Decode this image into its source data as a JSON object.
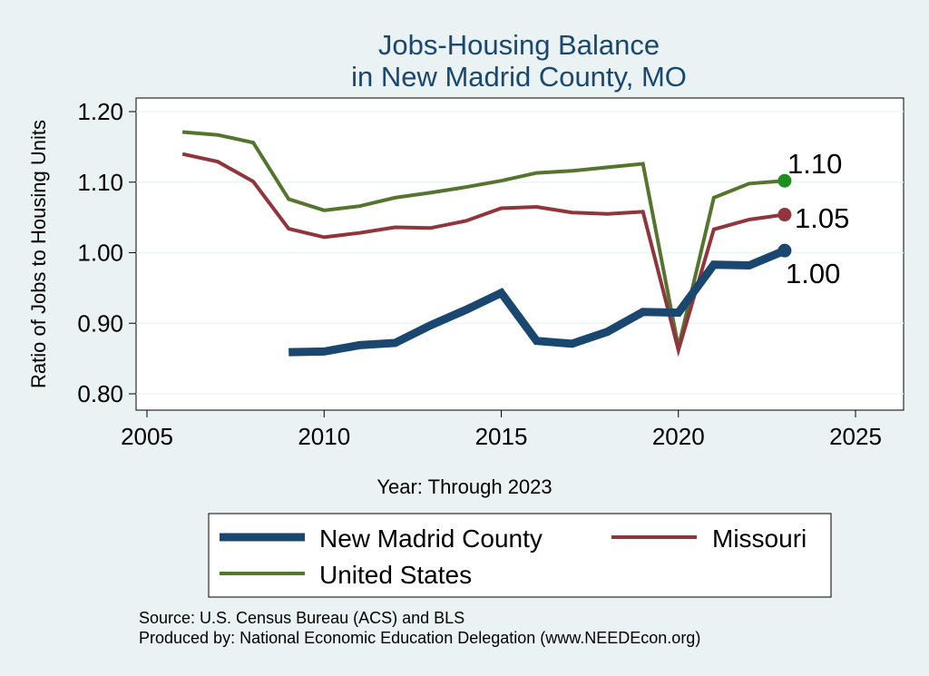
{
  "chart_data": {
    "type": "line",
    "title": [
      "Jobs-Housing Balance",
      "in New Madrid County, MO"
    ],
    "xlabel": "Year: Through 2023",
    "ylabel": "Ratio of Jobs to Housing Units",
    "xlim": [
      2005,
      2026.5
    ],
    "ylim": [
      0.78,
      1.22
    ],
    "xticks": [
      2005,
      2010,
      2015,
      2020,
      2025
    ],
    "yticks": [
      0.8,
      0.9,
      1.0,
      1.1,
      1.2
    ],
    "xtick_labels": [
      "2005",
      "2010",
      "2015",
      "2020",
      "2025"
    ],
    "ytick_labels": [
      "0.80",
      "0.90",
      "1.00",
      "1.10",
      "1.20"
    ],
    "series": [
      {
        "name": "New Madrid County",
        "color": "#1a476f",
        "x": [
          2009,
          2010,
          2011,
          2012,
          2013,
          2014,
          2015,
          2016,
          2017,
          2018,
          2019,
          2020,
          2021,
          2022,
          2023
        ],
        "values": [
          0.859,
          0.86,
          0.869,
          0.872,
          0.897,
          0.919,
          0.943,
          0.875,
          0.871,
          0.888,
          0.916,
          0.915,
          0.983,
          0.982,
          1.003
        ],
        "end_label": "1.00"
      },
      {
        "name": "Missouri",
        "color": "#90353b",
        "x": [
          2006,
          2007,
          2008,
          2009,
          2010,
          2011,
          2012,
          2013,
          2014,
          2015,
          2016,
          2017,
          2018,
          2019,
          2020,
          2021,
          2022,
          2023
        ],
        "values": [
          1.14,
          1.129,
          1.101,
          1.034,
          1.022,
          1.028,
          1.036,
          1.035,
          1.045,
          1.063,
          1.065,
          1.057,
          1.055,
          1.058,
          0.862,
          1.033,
          1.047,
          1.054
        ],
        "end_label": "1.05"
      },
      {
        "name": "United States",
        "color": "#55752f",
        "marker_color": "#1e8f1e",
        "x": [
          2006,
          2007,
          2008,
          2009,
          2010,
          2011,
          2012,
          2013,
          2014,
          2015,
          2016,
          2017,
          2018,
          2019,
          2020,
          2021,
          2022,
          2023
        ],
        "values": [
          1.171,
          1.167,
          1.156,
          1.076,
          1.06,
          1.066,
          1.078,
          1.085,
          1.093,
          1.102,
          1.113,
          1.116,
          1.121,
          1.126,
          0.866,
          1.078,
          1.098,
          1.102
        ],
        "end_label": "1.10"
      }
    ],
    "legend_position": "bottom",
    "notes": [
      "Source: U.S. Census Bureau (ACS) and BLS",
      "Produced by: National Economic Education Delegation (www.NEEDEcon.org)"
    ]
  }
}
